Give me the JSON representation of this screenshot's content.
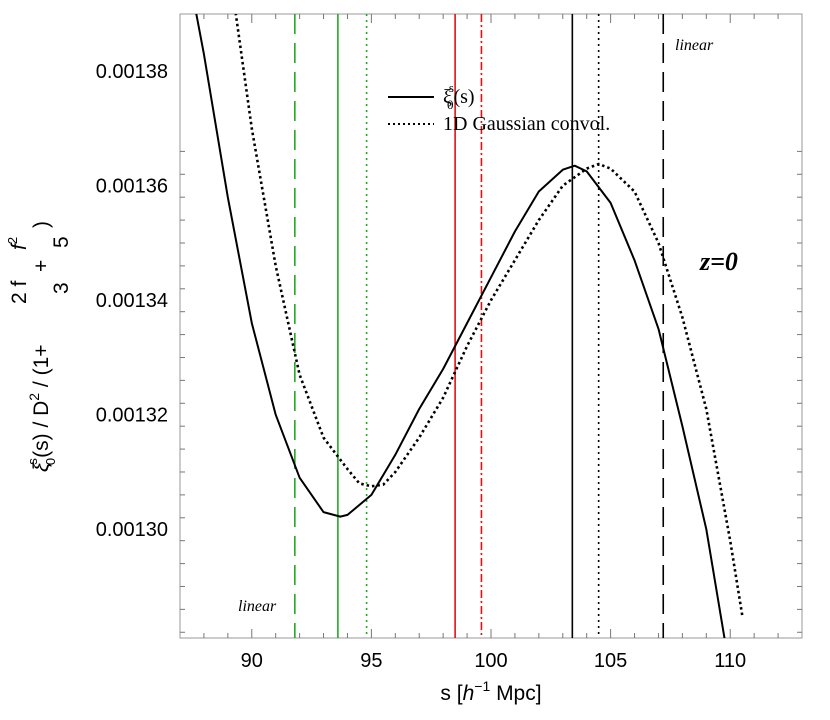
{
  "chart_data": {
    "type": "line",
    "title": "",
    "xlabel": {
      "pre": "s [",
      "h": "h",
      "sup": "−1",
      "post": " Mpc]"
    },
    "ylabel": {
      "xi": "ξ",
      "xi_sup": "s",
      "xi_sub": "0",
      "mid": "(s) / D",
      "d_sup": "2",
      "open": " / (1+",
      "frac1_num": "2 f",
      "frac1_den": "3",
      "plus": "+",
      "frac2_num": "f",
      "frac2_sup": "2",
      "frac2_den": "5",
      "close": ")"
    },
    "xlim": [
      87,
      113
    ],
    "ylim": [
      0.001281,
      0.00139
    ],
    "x_ticks": [
      90,
      95,
      100,
      105,
      110
    ],
    "x_tick_labels": [
      "90",
      "95",
      "100",
      "105",
      "110"
    ],
    "y_ticks": [
      0.0013,
      0.00132,
      0.00134,
      0.00136,
      0.00138
    ],
    "y_tick_labels": [
      "0.00130",
      "0.00132",
      "0.00134",
      "0.00136",
      "0.00138"
    ],
    "legend": {
      "position": "top-center",
      "entries": [
        {
          "label_main": "ξ",
          "label_sup": "s",
          "label_sub": "0",
          "label_rest": "(s)",
          "style": "solid"
        },
        {
          "label": "1D Gaussian convol.",
          "style": "dotted"
        }
      ]
    },
    "annotations": {
      "redshift": "z=0",
      "linear_left": "linear",
      "linear_right": "linear"
    },
    "colors": {
      "black": "#000000",
      "green": "#22aa22",
      "red": "#dd1111"
    },
    "series": [
      {
        "name": "ξ0s(s)",
        "style": "solid",
        "color": "#000000",
        "points": [
          [
            87.5,
            0.001394
          ],
          [
            88,
            0.001383
          ],
          [
            89,
            0.001358
          ],
          [
            90,
            0.001336
          ],
          [
            91,
            0.00132
          ],
          [
            92,
            0.001309
          ],
          [
            93,
            0.001303
          ],
          [
            93.7,
            0.0013022
          ],
          [
            94,
            0.0013025
          ],
          [
            95,
            0.001306
          ],
          [
            96,
            0.001313
          ],
          [
            97,
            0.001321
          ],
          [
            98,
            0.001328
          ],
          [
            99,
            0.001336
          ],
          [
            100,
            0.001344
          ],
          [
            101,
            0.001352
          ],
          [
            102,
            0.001359
          ],
          [
            103,
            0.0013628
          ],
          [
            103.5,
            0.0013635
          ],
          [
            104,
            0.0013625
          ],
          [
            105,
            0.001357
          ],
          [
            106,
            0.001347
          ],
          [
            107,
            0.001335
          ],
          [
            108,
            0.001318
          ],
          [
            109,
            0.0013
          ],
          [
            110,
            0.001275
          ]
        ]
      },
      {
        "name": "1D Gaussian convol.",
        "style": "dotted",
        "color": "#000000",
        "points": [
          [
            89.2,
            0.001394
          ],
          [
            90,
            0.00137
          ],
          [
            91,
            0.001346
          ],
          [
            92,
            0.001327
          ],
          [
            93,
            0.001316
          ],
          [
            94,
            0.0013105
          ],
          [
            94.5,
            0.001308
          ],
          [
            95,
            0.0013075
          ],
          [
            95.5,
            0.0013078
          ],
          [
            96,
            0.00131
          ],
          [
            97,
            0.001316
          ],
          [
            98,
            0.001323
          ],
          [
            99,
            0.001332
          ],
          [
            100,
            0.00134
          ],
          [
            101,
            0.001347
          ],
          [
            102,
            0.001354
          ],
          [
            103,
            0.00136
          ],
          [
            104,
            0.001363
          ],
          [
            104.5,
            0.0013638
          ],
          [
            105,
            0.001363
          ],
          [
            106,
            0.001359
          ],
          [
            107,
            0.00135
          ],
          [
            108,
            0.001337
          ],
          [
            109,
            0.001321
          ],
          [
            110,
            0.001298
          ],
          [
            110.5,
            0.001285
          ]
        ]
      }
    ],
    "vertical_lines": [
      {
        "x": 91.8,
        "color": "#22aa22",
        "style": "dashed"
      },
      {
        "x": 93.6,
        "color": "#22aa22",
        "style": "solid"
      },
      {
        "x": 94.8,
        "color": "#22aa22",
        "style": "dotted"
      },
      {
        "x": 98.5,
        "color": "#dd1111",
        "style": "solid"
      },
      {
        "x": 99.6,
        "color": "#dd1111",
        "style": "dotdash"
      },
      {
        "x": 103.4,
        "color": "#000000",
        "style": "solid"
      },
      {
        "x": 104.5,
        "color": "#000000",
        "style": "dotted"
      },
      {
        "x": 107.2,
        "color": "#000000",
        "style": "dashed"
      }
    ],
    "grid": false
  }
}
